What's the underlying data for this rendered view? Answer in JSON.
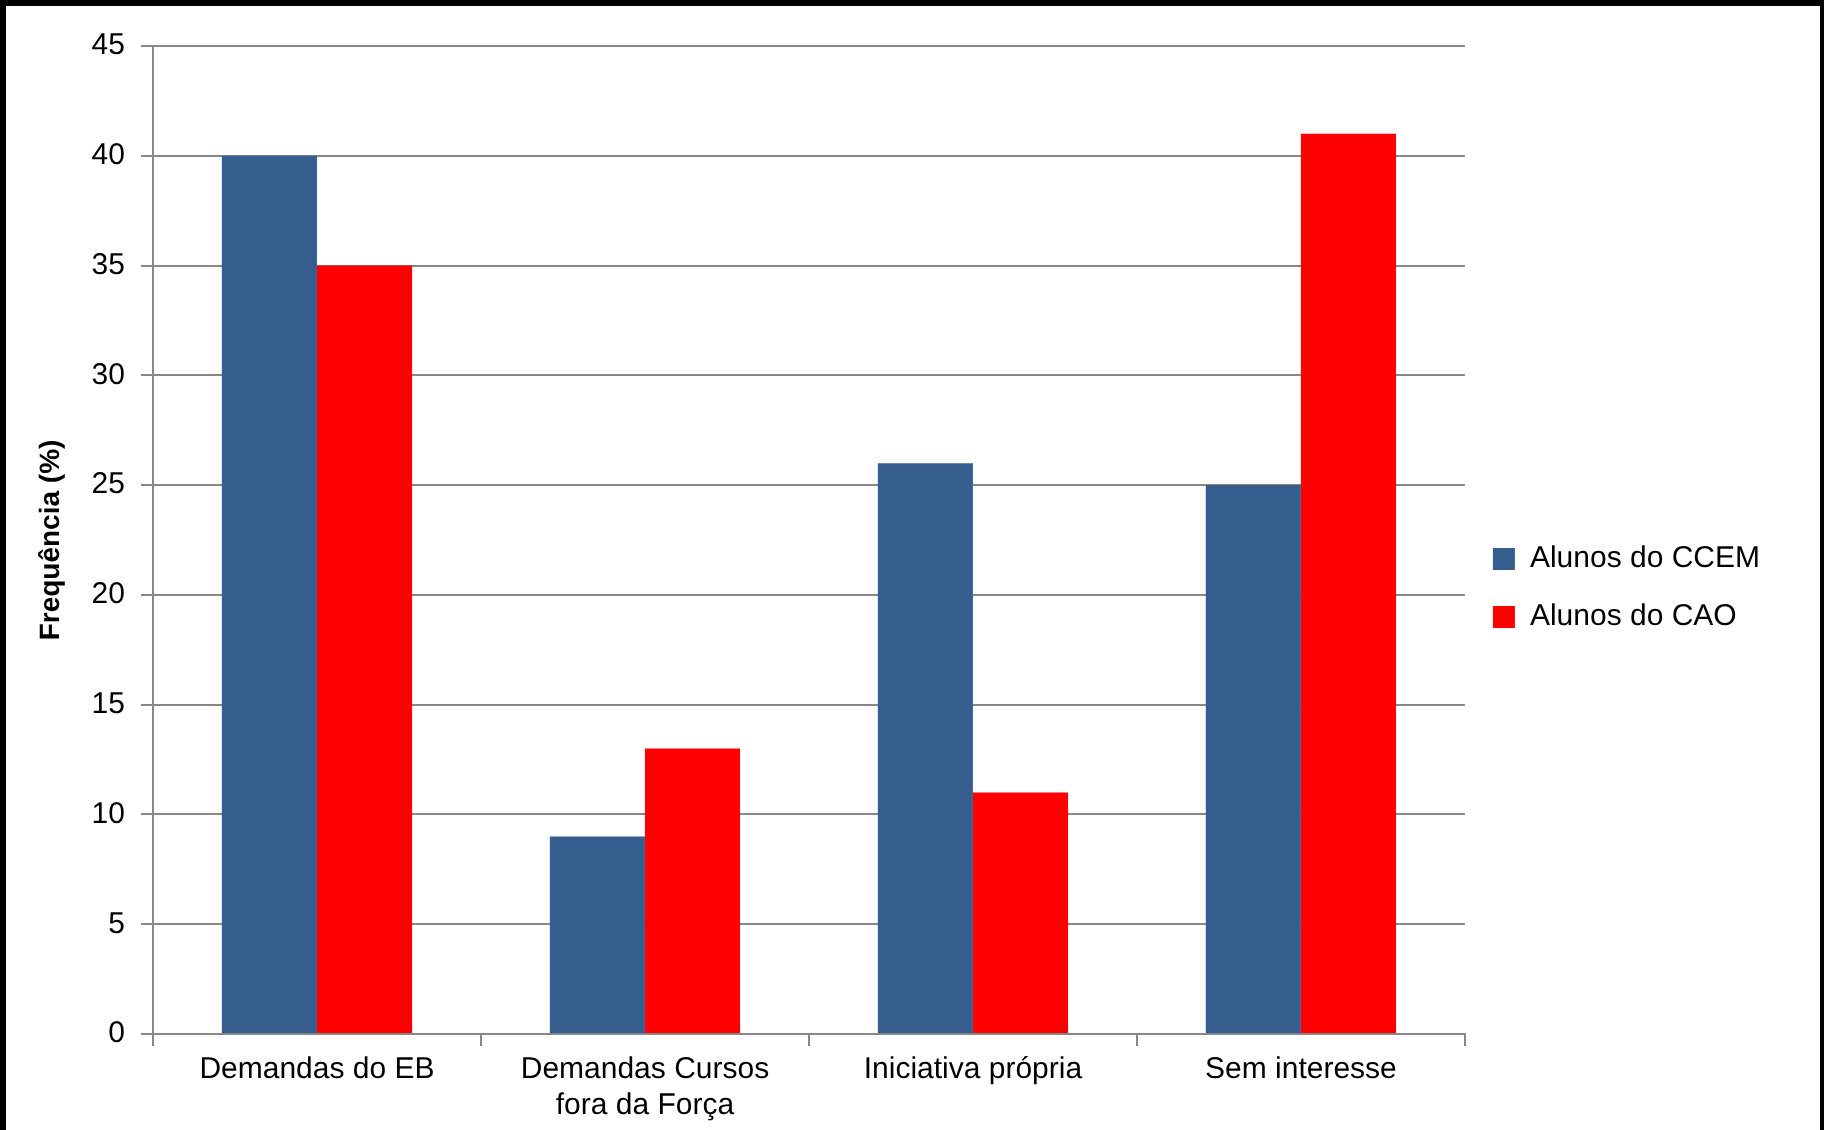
{
  "chart_data": {
    "type": "bar",
    "ylabel": "Frequência (%)",
    "categories": [
      "Demandas do EB",
      "Demandas Cursos fora da Força",
      "Iniciativa própria",
      "Sem interesse"
    ],
    "series": [
      {
        "name": "Alunos do CCEM",
        "color": "#355e8e",
        "values": [
          40,
          9,
          26,
          25
        ]
      },
      {
        "name": "Alunos do CAO",
        "color": "#ff0000",
        "values": [
          35,
          13,
          11,
          41
        ]
      }
    ],
    "ylim": [
      0,
      45
    ],
    "yticks": [
      0,
      5,
      10,
      15,
      20,
      25,
      30,
      35,
      40,
      45
    ],
    "grid": "y",
    "legend": "right"
  }
}
